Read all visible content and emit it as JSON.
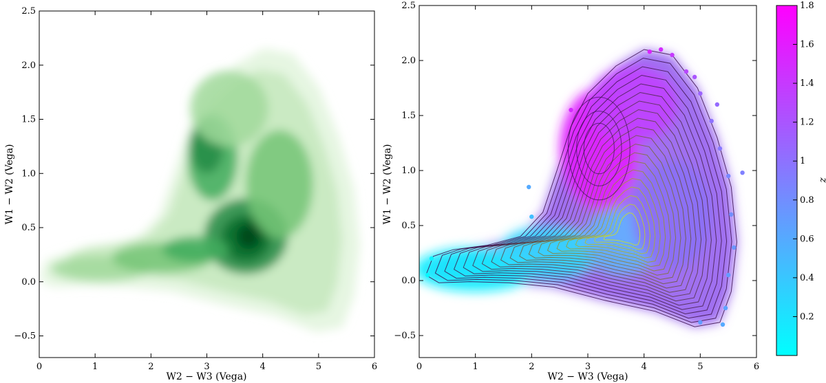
{
  "chart_data": [
    {
      "type": "heatmap",
      "subtype": "hexbin-density",
      "xlabel": "W2 − W3 (Vega)",
      "ylabel": "W1 − W2 (Vega)",
      "xlim": [
        0,
        6
      ],
      "ylim": [
        -0.7,
        2.5
      ],
      "xticks": [
        "0",
        "1",
        "2",
        "3",
        "4",
        "5",
        "6"
      ],
      "yticks": [
        "−0.5",
        "0.0",
        "0.5",
        "1.0",
        "1.5",
        "2.0",
        "2.5"
      ],
      "colormap": "white-to-dark-green",
      "color_high": "#00441b",
      "grid": false,
      "density_peaks": [
        {
          "x": 3.7,
          "y": 0.4,
          "relative_density": 1.0
        },
        {
          "x": 3.1,
          "y": 1.15,
          "relative_density": 0.6
        },
        {
          "x": 1.0,
          "y": 0.12,
          "relative_density": 0.35
        }
      ],
      "extent": {
        "x": [
          0.1,
          5.8
        ],
        "y": [
          -0.5,
          2.35
        ]
      }
    },
    {
      "type": "scatter",
      "subtype": "color-coded scatter with density contours",
      "xlabel": "W2 − W3 (Vega)",
      "ylabel": "W1 − W2 (Vega)",
      "xlim": [
        0,
        6
      ],
      "ylim": [
        -0.7,
        2.5
      ],
      "xticks": [
        "0",
        "1",
        "2",
        "3",
        "4",
        "5",
        "6"
      ],
      "yticks": [
        "−0.5",
        "0.0",
        "0.5",
        "1.0",
        "1.5",
        "2.0",
        "2.5"
      ],
      "colorbar": {
        "label": "z",
        "range": [
          0.0,
          1.8
        ],
        "ticks": [
          "0.2",
          "0.4",
          "0.6",
          "0.8",
          "1",
          "1.2",
          "1.4",
          "1.6",
          "1.8"
        ],
        "colormap": "cool (cyan to magenta)",
        "color_low": "#00ffff",
        "color_high": "#ff00ff"
      },
      "contour_levels": 20,
      "contour_color_outer": "#3b0f4f",
      "contour_color_inner": "#cde11d",
      "density_peaks": [
        {
          "x": 3.7,
          "y": 0.42,
          "z": 0.55
        },
        {
          "x": 3.2,
          "y": 1.2,
          "z": 1.4
        },
        {
          "x": 0.8,
          "y": 0.08,
          "z": 0.1
        }
      ],
      "grid": false
    }
  ]
}
